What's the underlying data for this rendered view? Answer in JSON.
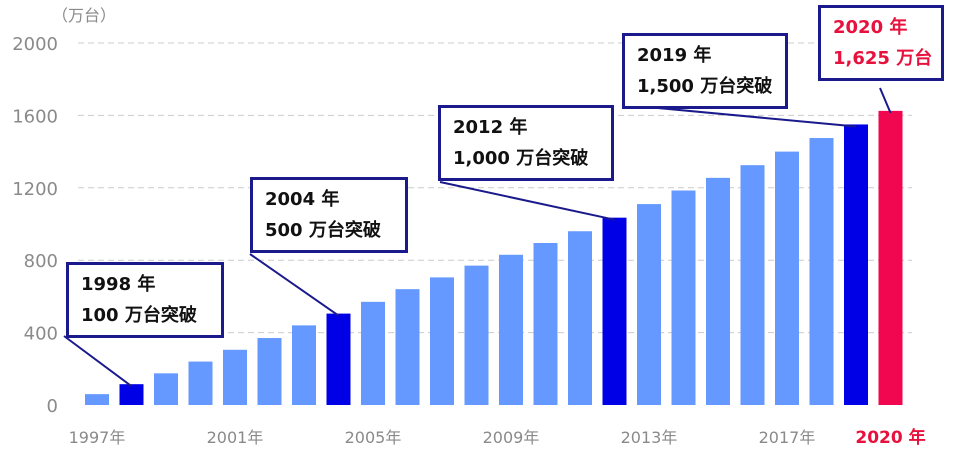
{
  "unit_label": "（万台）",
  "chart_data": {
    "type": "bar",
    "ylim": [
      0,
      2000
    ],
    "yticks": [
      0,
      400,
      800,
      1200,
      1600,
      2000
    ],
    "grid": true,
    "years": [
      1997,
      1998,
      1999,
      2000,
      2001,
      2002,
      2003,
      2004,
      2005,
      2006,
      2007,
      2008,
      2009,
      2010,
      2011,
      2012,
      2013,
      2014,
      2015,
      2016,
      2017,
      2018,
      2019,
      2020
    ],
    "values": [
      60,
      115,
      175,
      240,
      305,
      370,
      440,
      505,
      570,
      640,
      705,
      770,
      830,
      895,
      960,
      1035,
      1110,
      1185,
      1255,
      1325,
      1400,
      1475,
      1550,
      1625
    ],
    "x_tick_labels": [
      {
        "index": 0,
        "label": "1997年"
      },
      {
        "index": 4,
        "label": "2001年"
      },
      {
        "index": 8,
        "label": "2005年"
      },
      {
        "index": 12,
        "label": "2009年"
      },
      {
        "index": 16,
        "label": "2013年"
      },
      {
        "index": 20,
        "label": "2017年"
      },
      {
        "index": 23,
        "label": "2020 年"
      }
    ],
    "highlight_years": [
      1998,
      2004,
      2012,
      2019
    ],
    "current_year": 2020,
    "colors": {
      "bar": "#6699ff",
      "highlight": "#0000e6",
      "current": "#f0074f",
      "current_label": "#e8103c",
      "grid": "#cccccc",
      "tick_text": "#8a8a8a",
      "callout_border": "#1a1a8c"
    }
  },
  "callouts": [
    {
      "year": 1998,
      "line1": "1998 年",
      "line2": "100 万台突破"
    },
    {
      "year": 2004,
      "line1": "2004 年",
      "line2": "500 万台突破"
    },
    {
      "year": 2012,
      "line1": "2012 年",
      "line2": "1,000 万台突破"
    },
    {
      "year": 2019,
      "line1": "2019 年",
      "line2": "1,500 万台突破"
    },
    {
      "year": 2020,
      "line1": "2020 年",
      "line2": "1,625 万台"
    }
  ]
}
